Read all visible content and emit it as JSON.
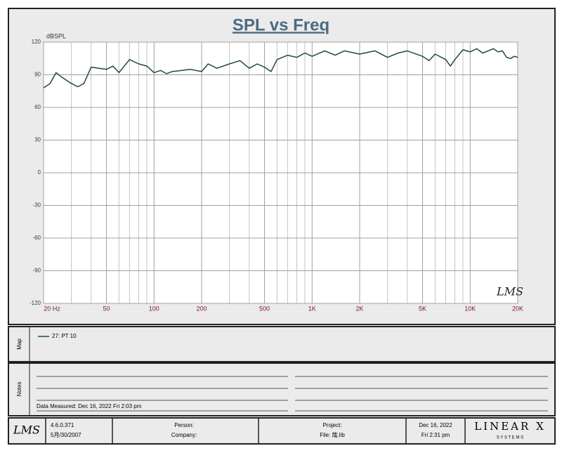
{
  "chart_data": {
    "type": "line",
    "title": "SPL vs Freq",
    "ylabel": "dBSPL",
    "xscale": "log",
    "xlim": [
      20,
      20000
    ],
    "ylim": [
      -120,
      120
    ],
    "xticks": [
      {
        "value": 20,
        "label": "20 Hz"
      },
      50,
      100,
      200,
      500,
      {
        "value": 1000,
        "label": "1K"
      },
      {
        "value": 2000,
        "label": "2K"
      },
      {
        "value": 5000,
        "label": "5K"
      },
      {
        "value": 10000,
        "label": "10K"
      },
      {
        "value": 20000,
        "label": "20K"
      }
    ],
    "xminorticks": [
      30,
      40,
      60,
      70,
      80,
      90,
      300,
      400,
      600,
      700,
      800,
      900,
      3000,
      4000,
      6000,
      7000,
      8000,
      9000
    ],
    "yticks": [
      -120,
      -90,
      -60,
      -30,
      0,
      30,
      60,
      90,
      120
    ],
    "grid": true,
    "x": [
      20,
      22,
      24,
      26,
      30,
      33,
      36,
      40,
      45,
      50,
      55,
      60,
      70,
      80,
      90,
      100,
      110,
      120,
      130,
      150,
      170,
      200,
      220,
      250,
      300,
      350,
      400,
      450,
      500,
      550,
      600,
      700,
      800,
      900,
      1000,
      1200,
      1400,
      1600,
      2000,
      2500,
      3000,
      3500,
      4000,
      5000,
      5500,
      6000,
      7000,
      7500,
      8000,
      9000,
      10000,
      11000,
      12000,
      13000,
      14000,
      15000,
      16000,
      17000,
      18000,
      19000,
      20000
    ],
    "series": [
      {
        "name": "27: PT 10",
        "color": "#1f4d2e",
        "values": [
          78,
          82,
          92,
          88,
          82,
          79,
          82,
          97,
          96,
          95,
          98,
          92,
          104,
          100,
          98,
          92,
          94,
          91,
          93,
          94,
          95,
          93,
          100,
          96,
          100,
          103,
          96,
          100,
          97,
          93,
          104,
          108,
          106,
          110,
          107,
          112,
          108,
          112,
          109,
          112,
          106,
          110,
          112,
          107,
          103,
          109,
          104,
          98,
          104,
          113,
          111,
          114,
          110,
          112,
          114,
          111,
          112,
          106,
          105,
          107,
          106
        ]
      }
    ],
    "watermark": "LMS"
  },
  "map": {
    "label": "Map"
  },
  "notes": {
    "label": "Notes",
    "measured": "Data Measured: Dec 16, 2022  Fri  2:03 pm"
  },
  "footer": {
    "logo": "LMS",
    "version": "4.6.0.371",
    "build_date": "5月/30/2007",
    "person": "Person:",
    "company": "Company:",
    "project": "Project:",
    "file": "File: 哉.lib",
    "date": "Dec 16, 2022",
    "time": "Fri  2:31 pm",
    "brand": "LINEAR X",
    "brand_sub": "S Y S T E M S"
  }
}
